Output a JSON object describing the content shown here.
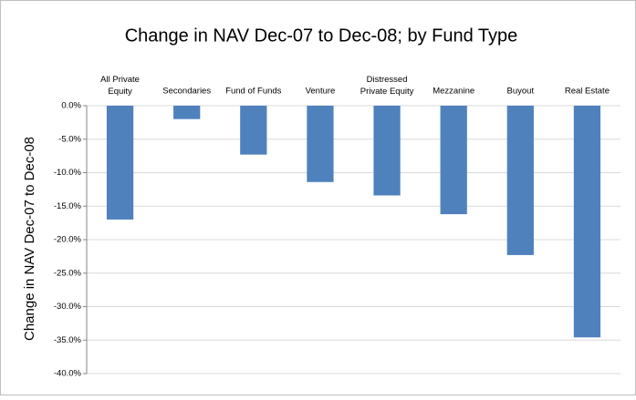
{
  "chart_data": {
    "type": "bar",
    "title": "Change in NAV Dec-07 to Dec-08; by Fund Type",
    "y_label": "Change in NAV Dec-07 to Dec-08",
    "categories": [
      "All Private Equity",
      "Secondaries",
      "Fund of Funds",
      "Venture",
      "Distressed Private Equity",
      "Mezzanine",
      "Buyout",
      "Real Estate"
    ],
    "values": [
      -17.0,
      -2.0,
      -7.3,
      -11.4,
      -13.4,
      -16.2,
      -22.3,
      -34.6
    ],
    "color": "#4f81bd",
    "ylim": [
      -40,
      0
    ],
    "yticks": [
      {
        "value": 0,
        "label": "0.0%"
      },
      {
        "value": -5,
        "label": "-5.0%"
      },
      {
        "value": -10,
        "label": "-10.0%"
      },
      {
        "value": -15,
        "label": "-15.0%"
      },
      {
        "value": -20,
        "label": "-20.0%"
      },
      {
        "value": -25,
        "label": "-25.0%"
      },
      {
        "value": -30,
        "label": "-30.0%"
      },
      {
        "value": -35,
        "label": "-35.0%"
      },
      {
        "value": -40,
        "label": "-40.0%"
      }
    ],
    "grid": true
  }
}
